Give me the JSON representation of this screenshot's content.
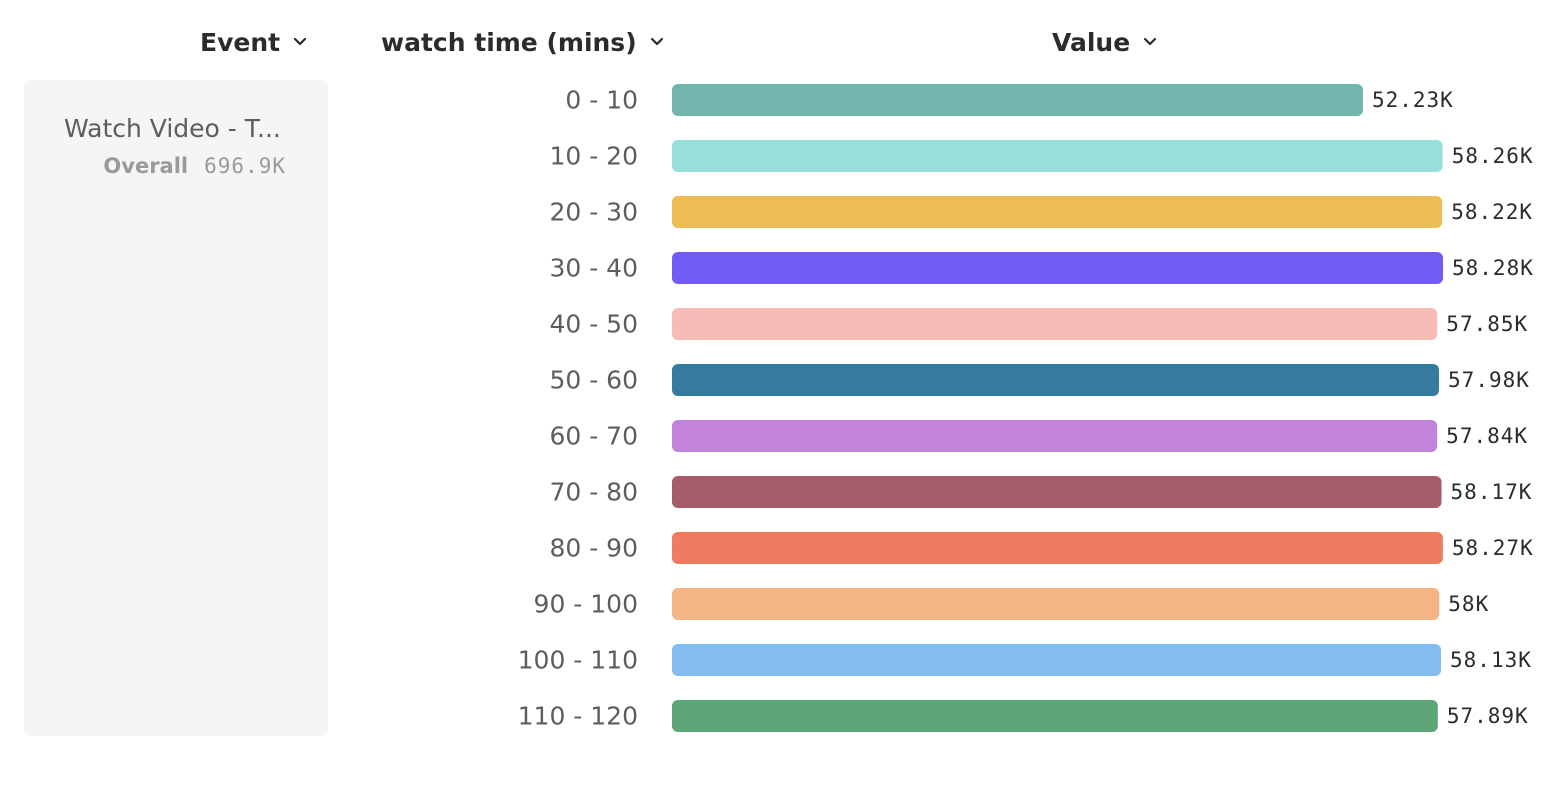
{
  "headers": {
    "event": "Event",
    "watch_time": "watch time (mins)",
    "value": "Value"
  },
  "event_panel": {
    "name": "Watch Video - T...",
    "overall_label": "Overall",
    "overall_value": "696.9K"
  },
  "chart_data": {
    "type": "bar",
    "orientation": "horizontal",
    "categories": [
      "0 - 10",
      "10 - 20",
      "20 - 30",
      "30 - 40",
      "40 - 50",
      "50 - 60",
      "60 - 70",
      "70 - 80",
      "80 - 90",
      "90 - 100",
      "100 - 110",
      "110 - 120"
    ],
    "values": [
      52230,
      58260,
      58220,
      58280,
      57850,
      57980,
      57840,
      58170,
      58270,
      58000,
      58130,
      57890
    ],
    "value_labels": [
      "52.23K",
      "58.26K",
      "58.22K",
      "58.28K",
      "57.85K",
      "57.98K",
      "57.84K",
      "58.17K",
      "58.27K",
      "58K",
      "58.13K",
      "57.89K"
    ],
    "colors": [
      "#72b5ac",
      "#97e0d9",
      "#edbd55",
      "#715bf5",
      "#f5bdb6",
      "#347b9e",
      "#c184d8",
      "#a55d6c",
      "#ef7b60",
      "#f4b485",
      "#83bcef",
      "#5ca576"
    ],
    "xlim": [
      0,
      58280
    ],
    "grid": false,
    "legend": "none"
  }
}
